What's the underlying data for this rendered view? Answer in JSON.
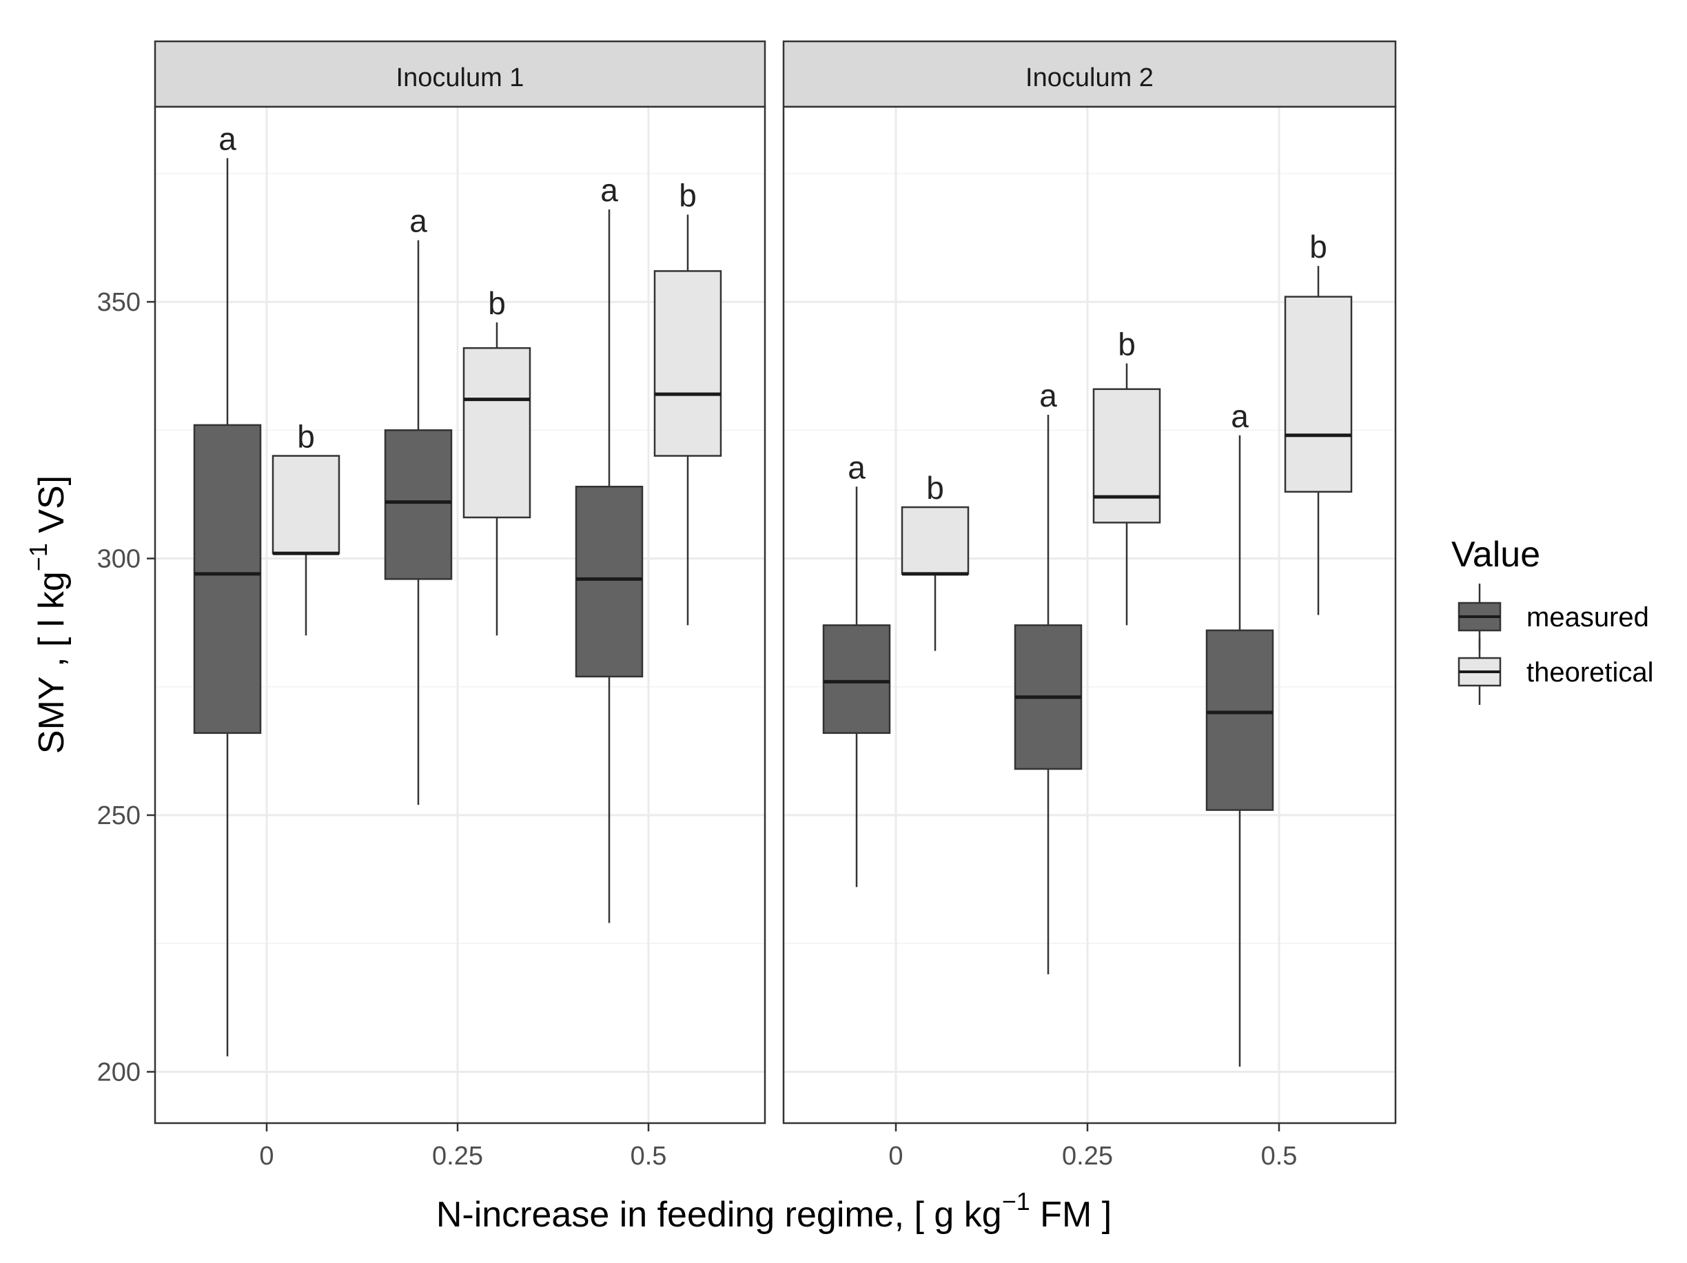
{
  "chart_data": {
    "type": "boxplot",
    "xlabel": "N-increase in feeding regime, [ g kg",
    "xlabel_sup": "−1",
    "xlabel_end": " FM ]",
    "ylabel": "SMY , [ l kg",
    "ylabel_sup": "−1",
    "ylabel_end": " VS]",
    "ylim": [
      190,
      388
    ],
    "yticks": [
      200,
      250,
      300,
      350
    ],
    "ytick_labels": [
      "200",
      "250",
      "300",
      "350"
    ],
    "minor_y": [
      225,
      275,
      325,
      375
    ],
    "categories": [
      "0",
      "0.25",
      "0.5"
    ],
    "legend": {
      "title": "Value",
      "position": "right",
      "entries": [
        {
          "name": "measured",
          "color": "#636363"
        },
        {
          "name": "theoretical",
          "color": "#e6e6e6"
        }
      ]
    },
    "panels": [
      {
        "title": "Inoculum 1",
        "groups": [
          {
            "category": "0",
            "measured": {
              "min": 203,
              "q1": 266,
              "median": 297,
              "q3": 326,
              "max": 378,
              "label": "a"
            },
            "theoretical": {
              "min": 285,
              "q1": 301,
              "median": 301,
              "q3": 320,
              "max": 320,
              "label": "b"
            }
          },
          {
            "category": "0.25",
            "measured": {
              "min": 252,
              "q1": 296,
              "median": 311,
              "q3": 325,
              "max": 362,
              "label": "a"
            },
            "theoretical": {
              "min": 285,
              "q1": 308,
              "median": 331,
              "q3": 341,
              "max": 346,
              "label": "b"
            }
          },
          {
            "category": "0.5",
            "measured": {
              "min": 229,
              "q1": 277,
              "median": 296,
              "q3": 314,
              "max": 368,
              "label": "a"
            },
            "theoretical": {
              "min": 287,
              "q1": 320,
              "median": 332,
              "q3": 356,
              "max": 367,
              "label": "b"
            }
          }
        ]
      },
      {
        "title": "Inoculum 2",
        "groups": [
          {
            "category": "0",
            "measured": {
              "min": 236,
              "q1": 266,
              "median": 276,
              "q3": 287,
              "max": 314,
              "label": "a"
            },
            "theoretical": {
              "min": 282,
              "q1": 297,
              "median": 297,
              "q3": 310,
              "max": 310,
              "label": "b"
            }
          },
          {
            "category": "0.25",
            "measured": {
              "min": 219,
              "q1": 259,
              "median": 273,
              "q3": 287,
              "max": 328,
              "label": "a"
            },
            "theoretical": {
              "min": 287,
              "q1": 307,
              "median": 312,
              "q3": 333,
              "max": 338,
              "label": "b"
            }
          },
          {
            "category": "0.5",
            "measured": {
              "min": 201,
              "q1": 251,
              "median": 270,
              "q3": 286,
              "max": 324,
              "label": "a"
            },
            "theoretical": {
              "min": 289,
              "q1": 313,
              "median": 324,
              "q3": 351,
              "max": 357,
              "label": "b"
            }
          }
        ]
      }
    ]
  }
}
